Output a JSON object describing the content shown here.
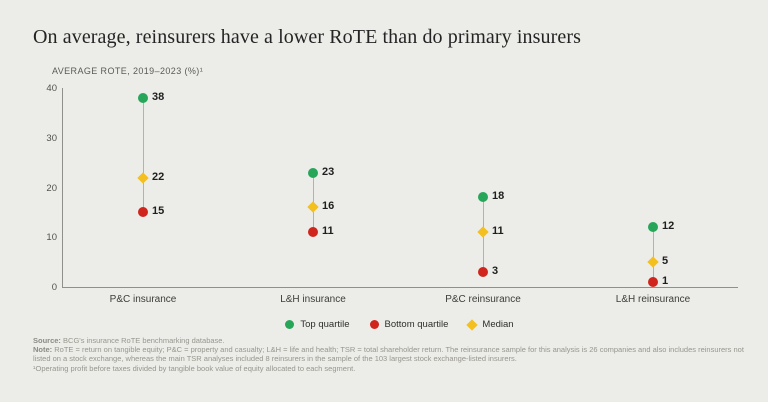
{
  "slide": {
    "title": "On average, reinsurers have a lower RoTE than do primary insurers",
    "subtitle": "AVERAGE ROTE, 2019–2023 (%)¹"
  },
  "chart_data": {
    "type": "scatter",
    "subtype": "dot-range-plot",
    "title": "On average, reinsurers have a lower RoTE than do primary insurers",
    "axis_title": "AVERAGE ROTE, 2019–2023 (%)¹",
    "categories": [
      "P&C insurance",
      "L&H insurance",
      "P&C reinsurance",
      "L&H reinsurance"
    ],
    "series": [
      {
        "name": "Top quartile",
        "marker": "circle",
        "color": "#27a65a",
        "values": [
          38,
          23,
          18,
          12
        ]
      },
      {
        "name": "Bottom quartile",
        "marker": "circle",
        "color": "#d0251c",
        "values": [
          15,
          11,
          3,
          1
        ]
      },
      {
        "name": "Median",
        "marker": "diamond",
        "color": "#f3c01f",
        "values": [
          22,
          16,
          11,
          5
        ]
      }
    ],
    "ylim": [
      0,
      40
    ],
    "yticks": [
      0,
      10,
      20,
      30,
      40
    ],
    "grid": false,
    "legend_position": "bottom",
    "axis_color": "#8f8f8b",
    "connector_color": "#b3b3ae"
  },
  "footnotes": {
    "source_label": "Source:",
    "source_text": " BCG's insurance RoTE benchmarking database.",
    "note_label": "Note:",
    "note_text": " RoTE = return on tangible equity; P&C = property and casualty; L&H = life and health; TSR = total shareholder return. The reinsurance sample for this analysis is 26 companies and also includes reinsurers not listed on a stock exchange, whereas the main TSR analyses included 8 reinsurers in the sample of the 103 largest stock exchange-listed insurers.",
    "footnote1": "¹Operating profit before taxes divided by tangible book value of equity allocated to each segment."
  }
}
